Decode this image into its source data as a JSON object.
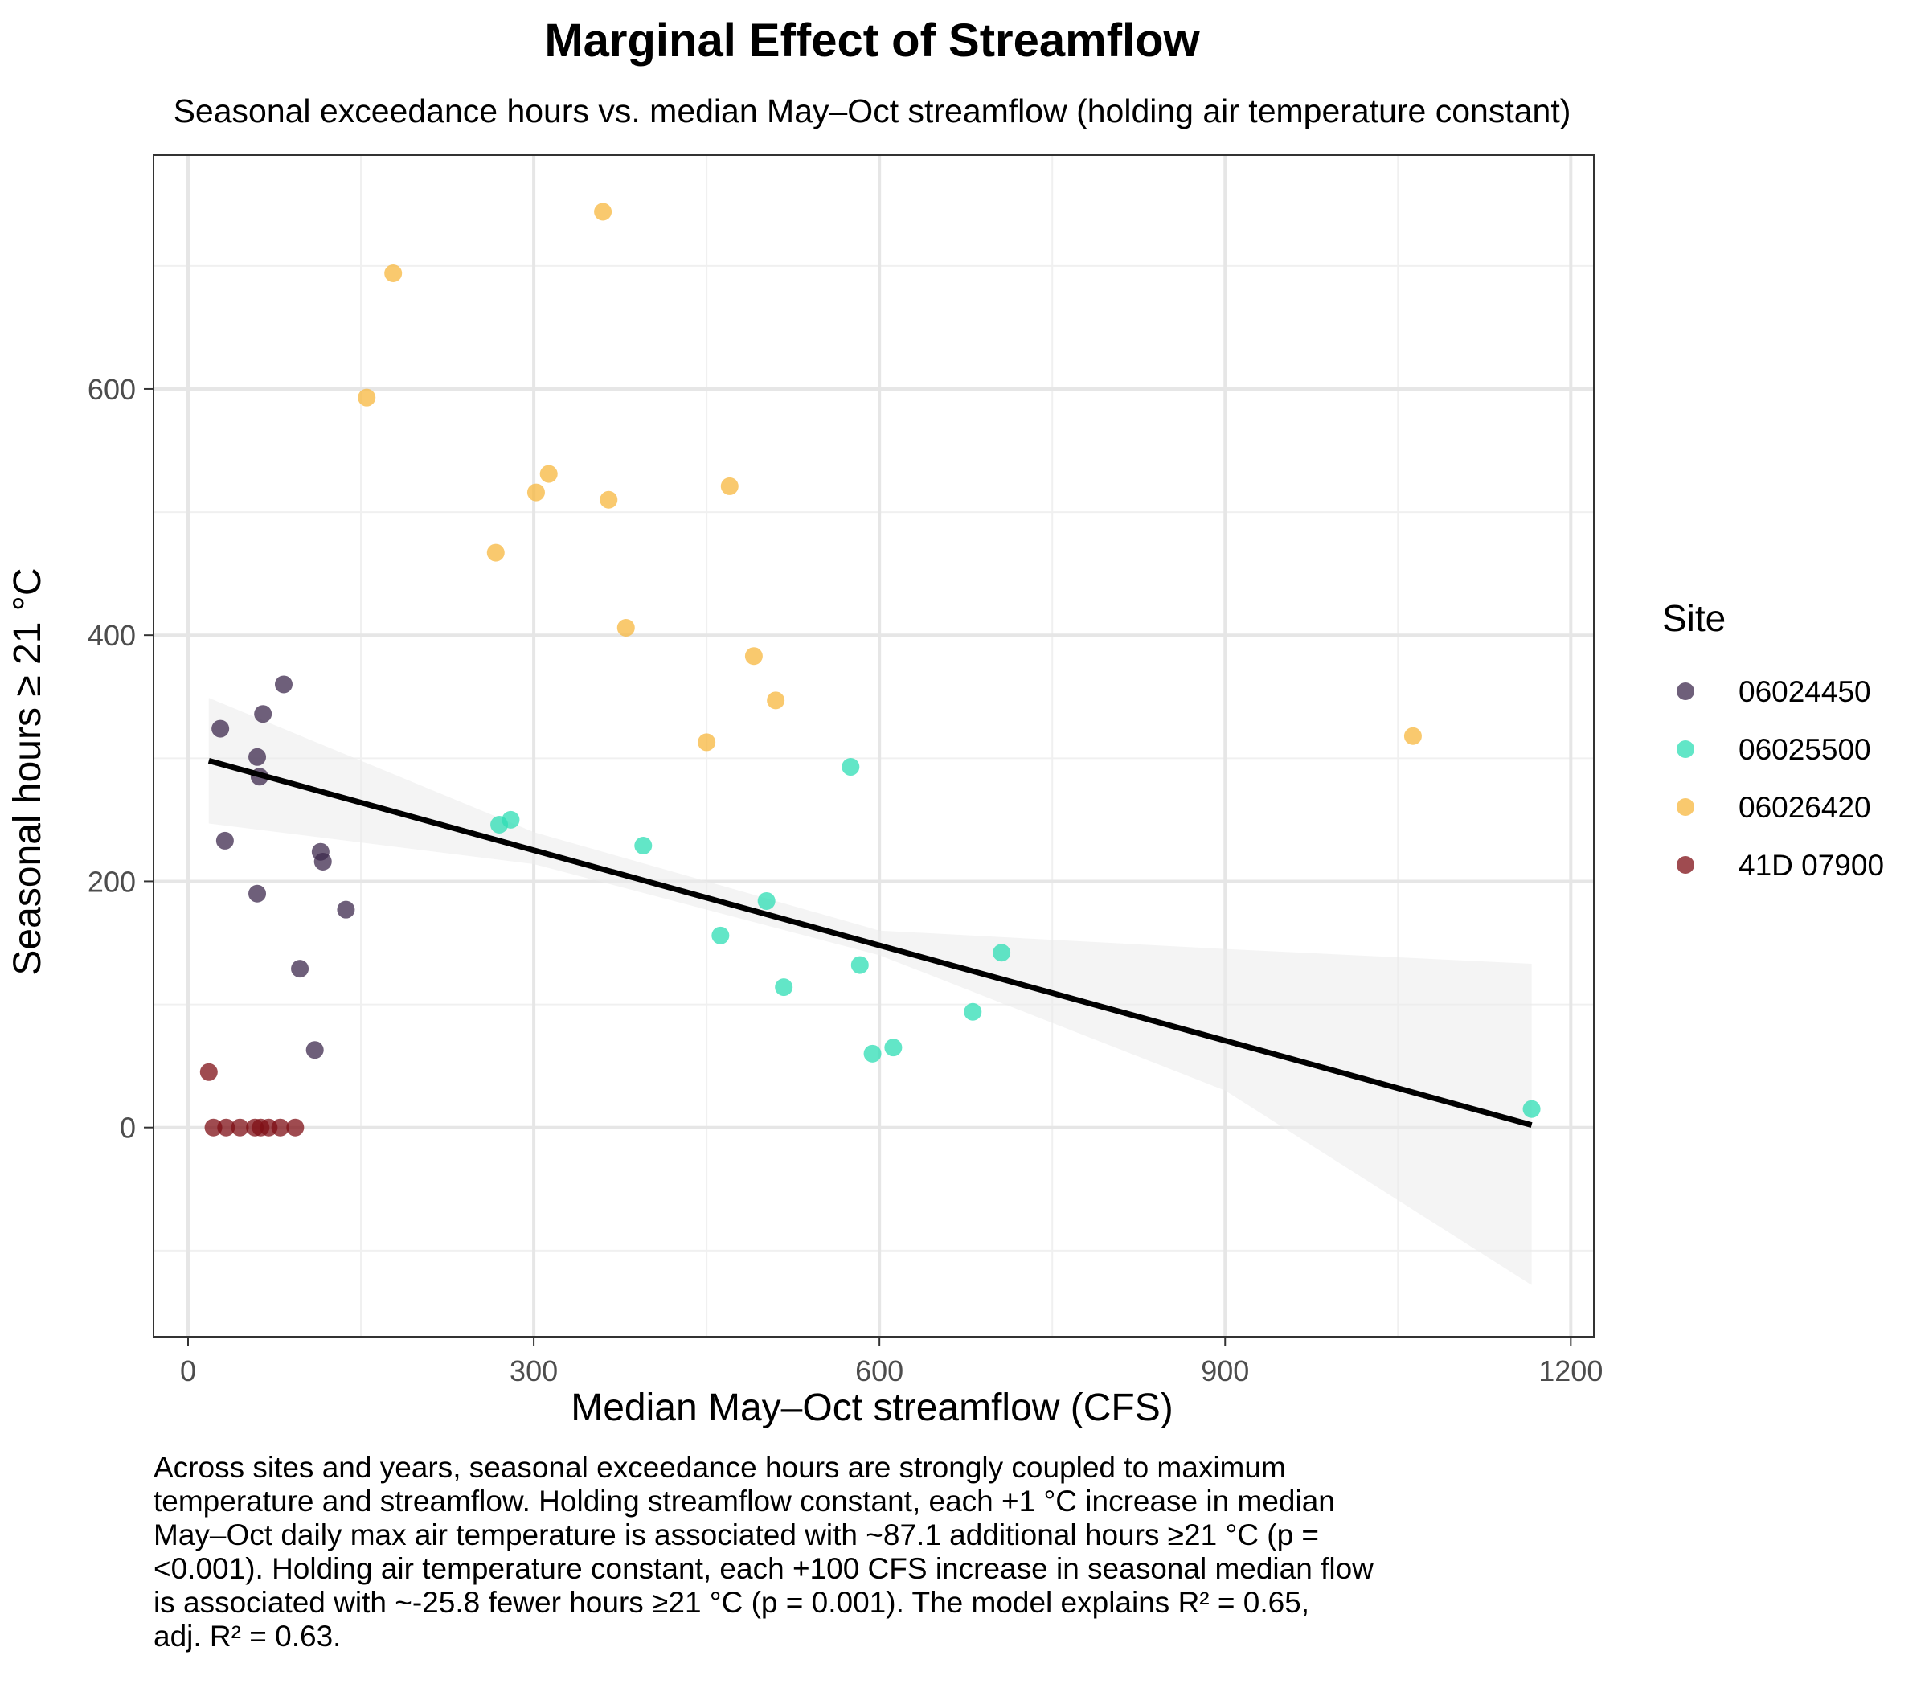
{
  "chart_data": {
    "type": "scatter",
    "title": "Marginal Effect of Streamflow",
    "subtitle": "Seasonal exceedance hours vs. median May–Oct streamflow (holding air temperature constant)",
    "xlabel": "Median May–Oct streamflow (CFS)",
    "ylabel": "Seasonal hours ≥ 21 °C",
    "xlim": [
      -30,
      1220
    ],
    "ylim": [
      -170,
      790
    ],
    "x_ticks": [
      0,
      300,
      600,
      900,
      1200
    ],
    "y_ticks": [
      0,
      200,
      400,
      600
    ],
    "x_tick_labels": [
      "0",
      "300",
      "600",
      "900",
      "1200"
    ],
    "y_tick_labels": [
      "0",
      "200",
      "400",
      "600"
    ],
    "grid": true,
    "legend": {
      "title": "Site",
      "position": "right"
    },
    "series": [
      {
        "name": "06024450",
        "color": "#3d2a4e",
        "points": [
          [
            28,
            324
          ],
          [
            32,
            233
          ],
          [
            60,
            301
          ],
          [
            62,
            285
          ],
          [
            65,
            336
          ],
          [
            83,
            360
          ],
          [
            60,
            190
          ],
          [
            97,
            129
          ],
          [
            115,
            224
          ],
          [
            117,
            216
          ],
          [
            137,
            177
          ],
          [
            110,
            63
          ]
        ]
      },
      {
        "name": "06025500",
        "color": "#2ddeb4",
        "points": [
          [
            270,
            246
          ],
          [
            280,
            250
          ],
          [
            395,
            229
          ],
          [
            575,
            293
          ],
          [
            502,
            184
          ],
          [
            462,
            156
          ],
          [
            583,
            132
          ],
          [
            517,
            114
          ],
          [
            706,
            142
          ],
          [
            681,
            94
          ],
          [
            612,
            65
          ],
          [
            594,
            60
          ],
          [
            1166,
            15
          ]
        ]
      },
      {
        "name": "06026420",
        "color": "#f7b73d",
        "points": [
          [
            360,
            744
          ],
          [
            178,
            694
          ],
          [
            155,
            593
          ],
          [
            313,
            531
          ],
          [
            302,
            516
          ],
          [
            365,
            510
          ],
          [
            470,
            521
          ],
          [
            267,
            467
          ],
          [
            380,
            406
          ],
          [
            491,
            383
          ],
          [
            510,
            347
          ],
          [
            450,
            313
          ],
          [
            1063,
            318
          ]
        ]
      },
      {
        "name": "41D 07900",
        "color": "#7f0f16",
        "points": [
          [
            18,
            45
          ],
          [
            22,
            0
          ],
          [
            33,
            0
          ],
          [
            45,
            0
          ],
          [
            58,
            0
          ],
          [
            63,
            0
          ],
          [
            70,
            0
          ],
          [
            80,
            0
          ],
          [
            93,
            0
          ]
        ]
      }
    ],
    "fit_line": {
      "color": "#000000",
      "start": [
        18,
        298
      ],
      "end": [
        1166,
        2
      ]
    },
    "confidence_band": {
      "color": "#ebebeb",
      "upper": [
        [
          18,
          349
        ],
        [
          300,
          240
        ],
        [
          600,
          160
        ],
        [
          900,
          145
        ],
        [
          1166,
          133
        ]
      ],
      "lower": [
        [
          18,
          247
        ],
        [
          300,
          214
        ],
        [
          600,
          140
        ],
        [
          900,
          30
        ],
        [
          1166,
          -128
        ]
      ]
    },
    "caption": [
      "Across sites and years, seasonal exceedance hours are strongly coupled to maximum",
      "temperature and streamflow. Holding streamflow constant, each +1 °C increase in median",
      "May–Oct daily max air temperature is associated with ~87.1 additional hours ≥21 °C (p =",
      "<0.001). Holding air temperature constant, each +100 CFS increase in seasonal median flow",
      "is associated with ~-25.8 fewer hours ≥21 °C (p = 0.001). The model explains R² = 0.65,",
      "adj. R² = 0.63."
    ]
  }
}
